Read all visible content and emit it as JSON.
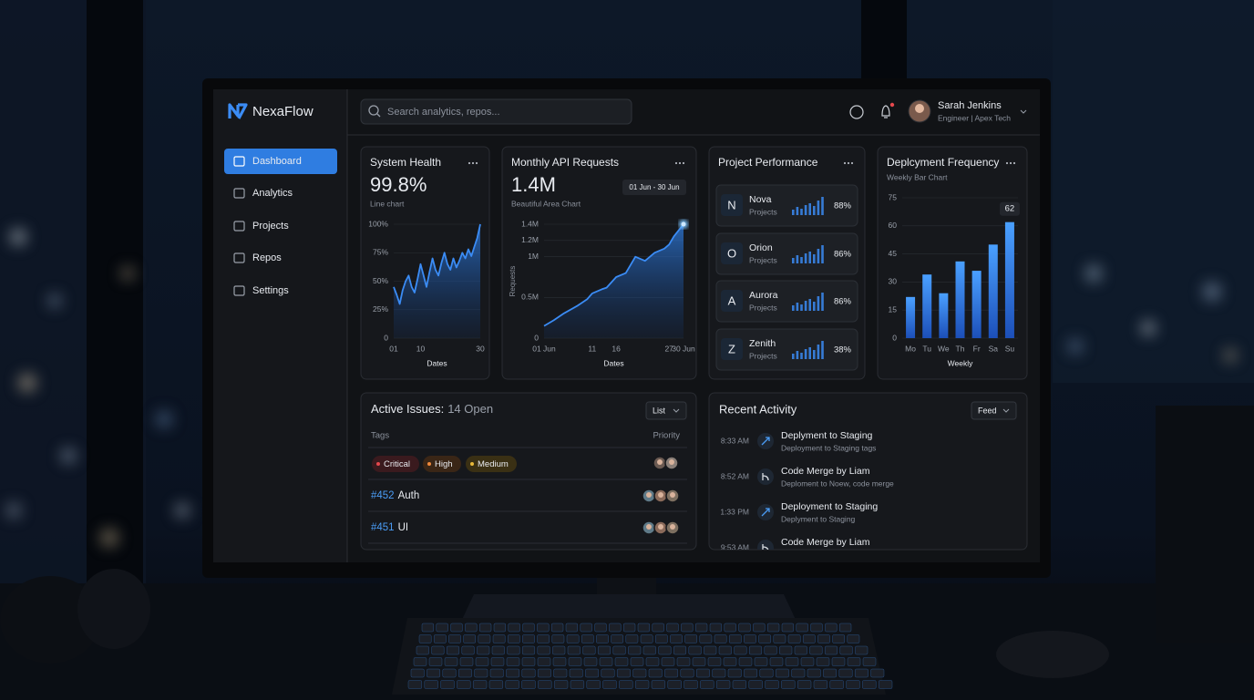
{
  "brand": "NexaFlow",
  "search_placeholder": "Search analytics, repos...",
  "nav": [
    "Dashboard",
    "Analytics",
    "Projects",
    "Repos",
    "Settings"
  ],
  "user": {
    "name": "Sarah Jenkins",
    "role": "Engineer | Apex Tech"
  },
  "chart_data": [
    {
      "type": "line",
      "title": "System Health",
      "headline": "99.8%",
      "subtitle": "Line chart",
      "x_label": "Dates",
      "x": [
        1,
        2,
        3,
        4,
        5,
        6,
        7,
        8,
        9,
        10,
        11,
        12,
        13,
        14,
        15,
        16,
        17,
        18,
        19,
        20,
        21,
        22,
        23,
        24,
        25,
        26,
        27,
        28,
        29,
        30
      ],
      "values": [
        45,
        38,
        30,
        42,
        50,
        55,
        45,
        40,
        52,
        65,
        55,
        45,
        58,
        70,
        60,
        55,
        66,
        75,
        65,
        60,
        70,
        62,
        68,
        75,
        70,
        78,
        72,
        80,
        88,
        100
      ],
      "xlim": [
        1,
        30
      ],
      "xticks": [
        {
          "value": 1,
          "label": "01"
        },
        10,
        30
      ],
      "ylim": [
        0,
        100
      ],
      "yticks": [
        0,
        {
          "value": 25,
          "label": "25%"
        },
        {
          "value": 50,
          "label": "50%"
        },
        {
          "value": 75,
          "label": "75%"
        },
        {
          "value": 100,
          "label": "100%"
        }
      ],
      "grid": true,
      "color": "#3b8cf5"
    },
    {
      "type": "area",
      "title": "Monthly API Requests",
      "headline": "1.4M",
      "subtitle": "Beautiful Area Chart",
      "date_range": "01 Jun - 30 Jun",
      "x_label": "Dates",
      "y_label": "Requests",
      "x": [
        1,
        3,
        5,
        8,
        10,
        11,
        13,
        14,
        16,
        18,
        19,
        20,
        22,
        24,
        26,
        27,
        28,
        30
      ],
      "values": [
        150000,
        220000,
        300000,
        400000,
        480000,
        550000,
        600000,
        620000,
        750000,
        800000,
        900000,
        1000000,
        950000,
        1050000,
        1100000,
        1150000,
        1250000,
        1400000
      ],
      "xlim": [
        1,
        30
      ],
      "xticks": [
        {
          "value": 1,
          "label": "01 Jun"
        },
        11,
        16,
        27,
        {
          "value": 30,
          "label": "30 Jun"
        }
      ],
      "ylim": [
        0,
        1400000
      ],
      "yticks": [
        0,
        {
          "value": 500000,
          "label": "0.5M"
        },
        {
          "value": 1000000,
          "label": "1M"
        },
        {
          "value": 1200000,
          "label": "1.2M"
        },
        {
          "value": 1400000,
          "label": "1.4M"
        }
      ],
      "grid": true,
      "color": "#3b8cf5"
    },
    {
      "type": "bar",
      "title": "Deplcyment Frequency",
      "subtitle": "Weekly Bar Chart",
      "x_label": "Weekly",
      "categories": [
        "Mo",
        "Tu",
        "We",
        "Th",
        "Fr",
        "Sa",
        "Su"
      ],
      "values": [
        22,
        34,
        24,
        41,
        36,
        50,
        62
      ],
      "value_labels": [
        null,
        null,
        null,
        null,
        null,
        null,
        "62"
      ],
      "ylim": [
        0,
        75
      ],
      "yticks": [
        0,
        15,
        30,
        45,
        60,
        75
      ],
      "grid": true,
      "color": "#3b8cf5"
    }
  ],
  "project_performance": {
    "title": "Project Performance",
    "items": [
      {
        "initial": "N",
        "name": "Nova",
        "subtitle": "Projects",
        "value": "88%"
      },
      {
        "initial": "O",
        "name": "Orion",
        "subtitle": "Projects",
        "value": "86%"
      },
      {
        "initial": "A",
        "name": "Aurora",
        "subtitle": "Projects",
        "value": "86%"
      },
      {
        "initial": "Z",
        "name": "Zenith",
        "subtitle": "Projects",
        "value": "38%"
      }
    ]
  },
  "active_issues": {
    "title": "Active Issues:",
    "count": "14 Open",
    "view": "List",
    "columns": [
      "Tags",
      "Priority"
    ],
    "tags": [
      "Critical",
      "High",
      "Medium"
    ],
    "rows": [
      {
        "id": "#452",
        "name": "Auth"
      },
      {
        "id": "#451",
        "name": "UI"
      }
    ]
  },
  "recent_activity": {
    "title": "Recent Activity",
    "view": "Feed",
    "items": [
      {
        "time": "8:33 AM",
        "title": "Deplyment to Staging",
        "subtitle": "Deployment to Staging tags"
      },
      {
        "time": "8:52 AM",
        "title": "Code Merge by Liam",
        "subtitle": "Deploment to Noew, code merge"
      },
      {
        "time": "1:33 PM",
        "title": "Deployment to Staging",
        "subtitle": "Deplyment to Staging"
      },
      {
        "time": "9:53 AM",
        "title": "Code Merge by Liam"
      }
    ]
  }
}
